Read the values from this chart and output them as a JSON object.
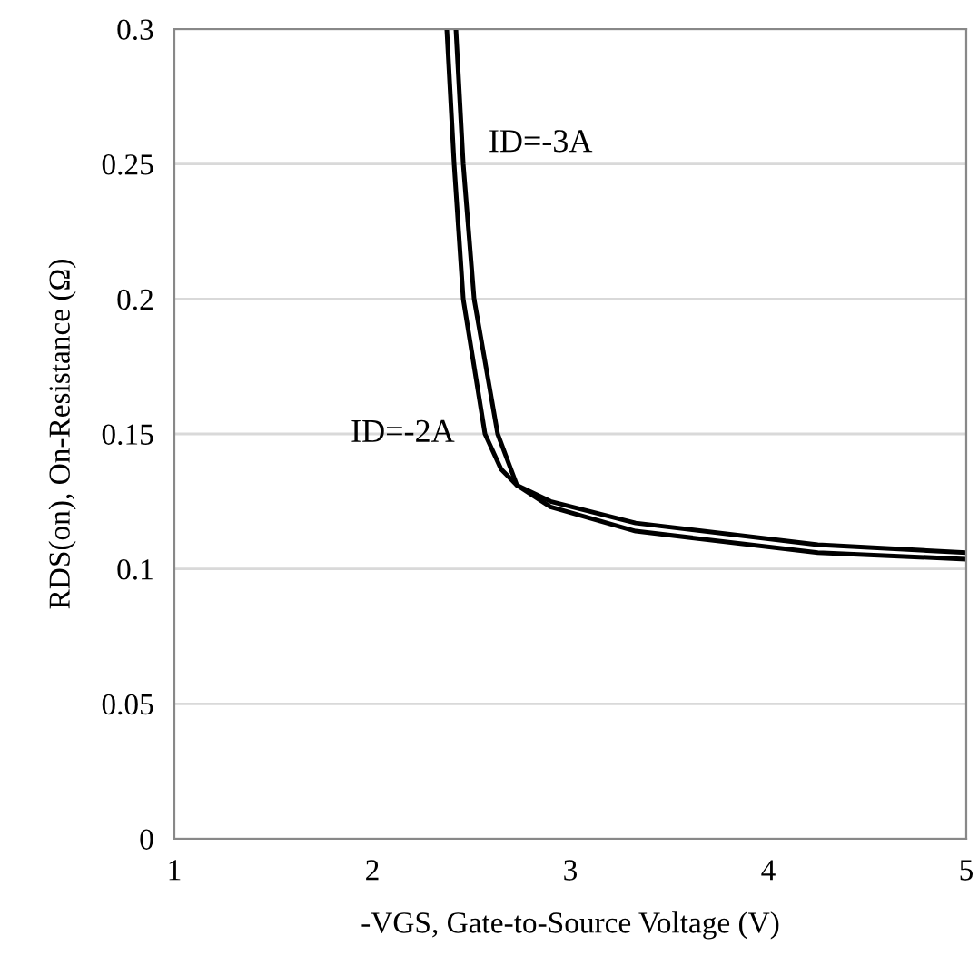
{
  "chart_data": {
    "type": "line",
    "xlabel": "-VGS, Gate-to-Source Voltage (V)",
    "ylabel": "RDS(on), On-Resistance (Ω)",
    "series": [
      {
        "name": "ID=-3A",
        "color": "#000000",
        "x": [
          2.422,
          2.459,
          2.514,
          2.633,
          2.73,
          2.9,
          3.33,
          4.25,
          5
        ],
        "values": [
          0.3,
          0.25,
          0.2,
          0.15,
          0.131,
          0.125,
          0.117,
          0.109,
          0.106
        ]
      },
      {
        "name": "ID=-2A",
        "color": "#000000",
        "x": [
          2.376,
          2.413,
          2.459,
          2.569,
          2.65,
          2.73,
          2.9,
          3.33,
          4.25,
          5
        ],
        "values": [
          0.3,
          0.25,
          0.2,
          0.15,
          0.137,
          0.131,
          0.123,
          0.114,
          0.106,
          0.1036
        ]
      }
    ],
    "xlim": [
      1,
      5
    ],
    "xticks": [
      1,
      2,
      3,
      4,
      5
    ],
    "ylim": [
      0,
      0.3
    ],
    "yticks": [
      0,
      0.05,
      0.1,
      0.15,
      0.2,
      0.25,
      0.3
    ],
    "grid": "y",
    "marker": "none",
    "line_style": "solid",
    "legend": false
  }
}
